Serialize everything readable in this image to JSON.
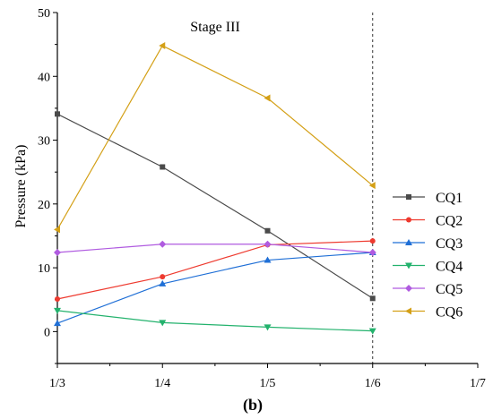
{
  "chart_data": {
    "type": "line",
    "title": "",
    "xlabel": "",
    "ylabel": "Pressure (kPa)",
    "annotation": "Stage III",
    "panel_label": "(b)",
    "x_categories": [
      "1/3",
      "1/4",
      "1/5",
      "1/6",
      "1/7"
    ],
    "ylim": [
      -5,
      50
    ],
    "yticks": [
      0,
      10,
      20,
      30,
      40,
      50
    ],
    "vertical_reference_line_at": "1/6",
    "legend_position": "right",
    "series": [
      {
        "name": "CQ1",
        "color": "#4a4a4a",
        "marker": "square",
        "values": [
          34.1,
          25.8,
          15.8,
          5.2
        ]
      },
      {
        "name": "CQ2",
        "color": "#ee3a2f",
        "marker": "circle",
        "values": [
          5.1,
          8.6,
          13.6,
          14.2
        ]
      },
      {
        "name": "CQ3",
        "color": "#1f6fd6",
        "marker": "triangle-up",
        "values": [
          1.3,
          7.5,
          11.2,
          12.4
        ]
      },
      {
        "name": "CQ4",
        "color": "#23b26d",
        "marker": "triangle-down",
        "values": [
          3.3,
          1.4,
          0.7,
          0.1
        ]
      },
      {
        "name": "CQ5",
        "color": "#b05be0",
        "marker": "diamond",
        "values": [
          12.4,
          13.7,
          13.7,
          12.4
        ]
      },
      {
        "name": "CQ6",
        "color": "#d4a017",
        "marker": "triangle-left",
        "values": [
          16.0,
          44.8,
          36.6,
          22.9
        ]
      }
    ]
  }
}
